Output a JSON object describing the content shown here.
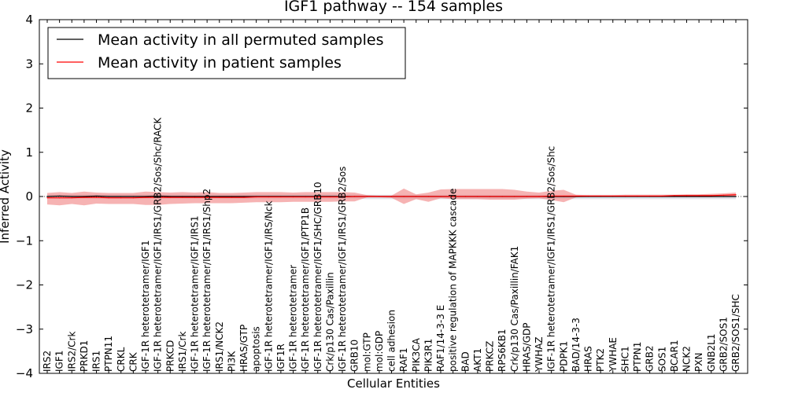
{
  "chart_data": {
    "type": "line",
    "title": "IGF1 pathway -- 154 samples",
    "xlabel": "Cellular Entities",
    "ylabel": "Inferred Activity",
    "ylim": [
      -4,
      4
    ],
    "yticks": [
      {
        "value": 4,
        "label": "4"
      },
      {
        "value": 3,
        "label": "3"
      },
      {
        "value": 2,
        "label": "2"
      },
      {
        "value": 1,
        "label": "1"
      },
      {
        "value": 0,
        "label": "0"
      },
      {
        "value": -1,
        "label": "−1"
      },
      {
        "value": -2,
        "label": "−2"
      },
      {
        "value": -3,
        "label": "−3"
      },
      {
        "value": -4,
        "label": "−4"
      }
    ],
    "categories": [
      "IRS2",
      "IGF1",
      "IRS2/Crk",
      "PRKD1",
      "IRS1",
      "PTPN11",
      "CRKL",
      "CRK",
      "IGF-1R heterotetramer/IGF1",
      "IGF-1R heterotetramer/IGF1/IRS1/GRB2/Sos/Shc/RACK",
      "PRKCD",
      "IRS1/Crk",
      "IGF-1R heterotetramer/IGF1/IRS1",
      "IGF-1R heterotetramer/IGF1/IRS1/Shp2",
      "IRS1/NCK2",
      "PI3K",
      "HRAS/GTP",
      "apoptosis",
      "IGF-1R heterotetramer/IGF1/IRS/Nck",
      "IGF1R",
      "IGF-1R heterotetramer",
      "IGF-1R heterotetramer/IGF1/PTP1B",
      "IGF-1R heterotetramer/IGF1/SHC/GRB10",
      "Crk/p130 Cas/Paxillin",
      "IGF-1R heterotetramer/IGF1/IRS1/GRB2/Sos",
      "GRB10",
      "mol:GTP",
      "mol:GDP",
      "cell adhesion",
      "RAF1",
      "PIK3CA",
      "PIK3R1",
      "RAF1/14-3-3 E",
      "positive regulation of MAPKKK cascade",
      "BAD",
      "AKT1",
      "PRKCZ",
      "RPS6KB1",
      "Crk/p130 Cas/Paxillin/FAK1",
      "HRAS/GDP",
      "YWHAZ",
      "IGF-1R heterotetramer/IGF1/IRS1/GRB2/Sos/Shc",
      "PDPK1",
      "BAD/14-3-3",
      "HRAS",
      "PTK2",
      "YWHAE",
      "SHC1",
      "PTPN1",
      "GRB2",
      "SOS1",
      "BCAR1",
      "NCK2",
      "PXN",
      "GNB2L1",
      "GRB2/SOS1",
      "GRB2/SOS1/SHC"
    ],
    "series": [
      {
        "name": "Mean activity in all permuted samples",
        "color": "#000000",
        "band_color": "#c8c8d6",
        "values": [
          0.0,
          0.01,
          0.0,
          0.0,
          0.01,
          0.0,
          0.0,
          0.0,
          0.0,
          0.01,
          0.0,
          0.0,
          0.0,
          0.0,
          0.0,
          0.0,
          0.0,
          0.0,
          0.0,
          0.0,
          0.0,
          0.0,
          0.0,
          0.0,
          0.0,
          0.0,
          0.0,
          0.0,
          0.0,
          0.0,
          0.0,
          0.0,
          0.0,
          0.0,
          0.0,
          0.0,
          0.0,
          0.0,
          0.0,
          0.0,
          0.0,
          0.0,
          0.0,
          0.0,
          0.0,
          0.0,
          0.0,
          0.0,
          0.0,
          0.0,
          0.0,
          0.0,
          0.0,
          0.0,
          0.0,
          0.0,
          0.0
        ],
        "band_upper": [
          0.05,
          0.05,
          0.05,
          0.05,
          0.05,
          0.05,
          0.05,
          0.05,
          0.05,
          0.05,
          0.05,
          0.05,
          0.05,
          0.05,
          0.05,
          0.05,
          0.05,
          0.05,
          0.05,
          0.05,
          0.05,
          0.05,
          0.05,
          0.05,
          0.05,
          0.05,
          0.04,
          0.04,
          0.04,
          0.04,
          0.04,
          0.04,
          0.04,
          0.04,
          0.04,
          0.04,
          0.04,
          0.04,
          0.04,
          0.04,
          0.04,
          0.04,
          0.04,
          0.04,
          0.04,
          0.04,
          0.04,
          0.04,
          0.04,
          0.04,
          0.04,
          0.04,
          0.04,
          0.04,
          0.04,
          0.04,
          0.04
        ],
        "band_lower": [
          -0.05,
          -0.05,
          -0.05,
          -0.05,
          -0.05,
          -0.05,
          -0.05,
          -0.05,
          -0.05,
          -0.05,
          -0.05,
          -0.05,
          -0.05,
          -0.05,
          -0.05,
          -0.05,
          -0.05,
          -0.05,
          -0.05,
          -0.05,
          -0.05,
          -0.05,
          -0.05,
          -0.05,
          -0.05,
          -0.05,
          -0.06,
          -0.06,
          -0.06,
          -0.06,
          -0.06,
          -0.06,
          -0.06,
          -0.06,
          -0.06,
          -0.06,
          -0.06,
          -0.06,
          -0.06,
          -0.06,
          -0.06,
          -0.06,
          -0.06,
          -0.06,
          -0.06,
          -0.06,
          -0.06,
          -0.06,
          -0.06,
          -0.06,
          -0.06,
          -0.06,
          -0.06,
          -0.06,
          -0.06,
          -0.06,
          -0.06
        ]
      },
      {
        "name": "Mean activity in patient samples",
        "color": "#ff0000",
        "band_color": "#f08080",
        "values": [
          -0.03,
          -0.03,
          -0.03,
          -0.02,
          -0.02,
          -0.03,
          -0.03,
          -0.03,
          -0.02,
          -0.02,
          -0.02,
          -0.02,
          -0.02,
          -0.02,
          -0.02,
          -0.02,
          -0.02,
          -0.01,
          -0.01,
          -0.01,
          -0.01,
          -0.01,
          -0.01,
          -0.01,
          -0.01,
          0.0,
          0.0,
          0.0,
          0.0,
          0.0,
          0.0,
          0.0,
          0.0,
          0.0,
          0.0,
          0.0,
          0.0,
          0.0,
          0.0,
          0.0,
          0.0,
          0.01,
          0.01,
          0.01,
          0.01,
          0.01,
          0.01,
          0.01,
          0.01,
          0.01,
          0.01,
          0.02,
          0.02,
          0.02,
          0.02,
          0.03,
          0.04
        ],
        "band_upper": [
          0.08,
          0.1,
          0.08,
          0.11,
          0.09,
          0.08,
          0.08,
          0.08,
          0.11,
          0.1,
          0.09,
          0.1,
          0.09,
          0.1,
          0.08,
          0.08,
          0.09,
          0.1,
          0.1,
          0.1,
          0.09,
          0.1,
          0.1,
          0.1,
          0.1,
          0.09,
          0.03,
          0.02,
          0.02,
          0.18,
          0.05,
          0.09,
          0.16,
          0.17,
          0.17,
          0.17,
          0.17,
          0.17,
          0.15,
          0.11,
          0.09,
          0.13,
          0.15,
          0.04,
          0.03,
          0.03,
          0.03,
          0.04,
          0.04,
          0.04,
          0.04,
          0.04,
          0.05,
          0.05,
          0.06,
          0.07,
          0.09
        ],
        "band_lower": [
          -0.18,
          -0.2,
          -0.17,
          -0.2,
          -0.16,
          -0.17,
          -0.17,
          -0.17,
          -0.19,
          -0.19,
          -0.17,
          -0.16,
          -0.15,
          -0.15,
          -0.15,
          -0.15,
          -0.14,
          -0.13,
          -0.13,
          -0.13,
          -0.12,
          -0.12,
          -0.12,
          -0.12,
          -0.11,
          -0.11,
          -0.02,
          -0.02,
          -0.03,
          -0.17,
          -0.06,
          -0.12,
          -0.04,
          -0.06,
          -0.06,
          -0.06,
          -0.07,
          -0.07,
          -0.07,
          -0.05,
          -0.04,
          -0.08,
          -0.13,
          -0.02,
          -0.01,
          -0.01,
          -0.01,
          -0.01,
          -0.01,
          -0.01,
          -0.01,
          -0.01,
          -0.01,
          -0.01,
          -0.01,
          0.0,
          0.0
        ]
      }
    ],
    "legend_position": "top-left",
    "grid": false
  }
}
